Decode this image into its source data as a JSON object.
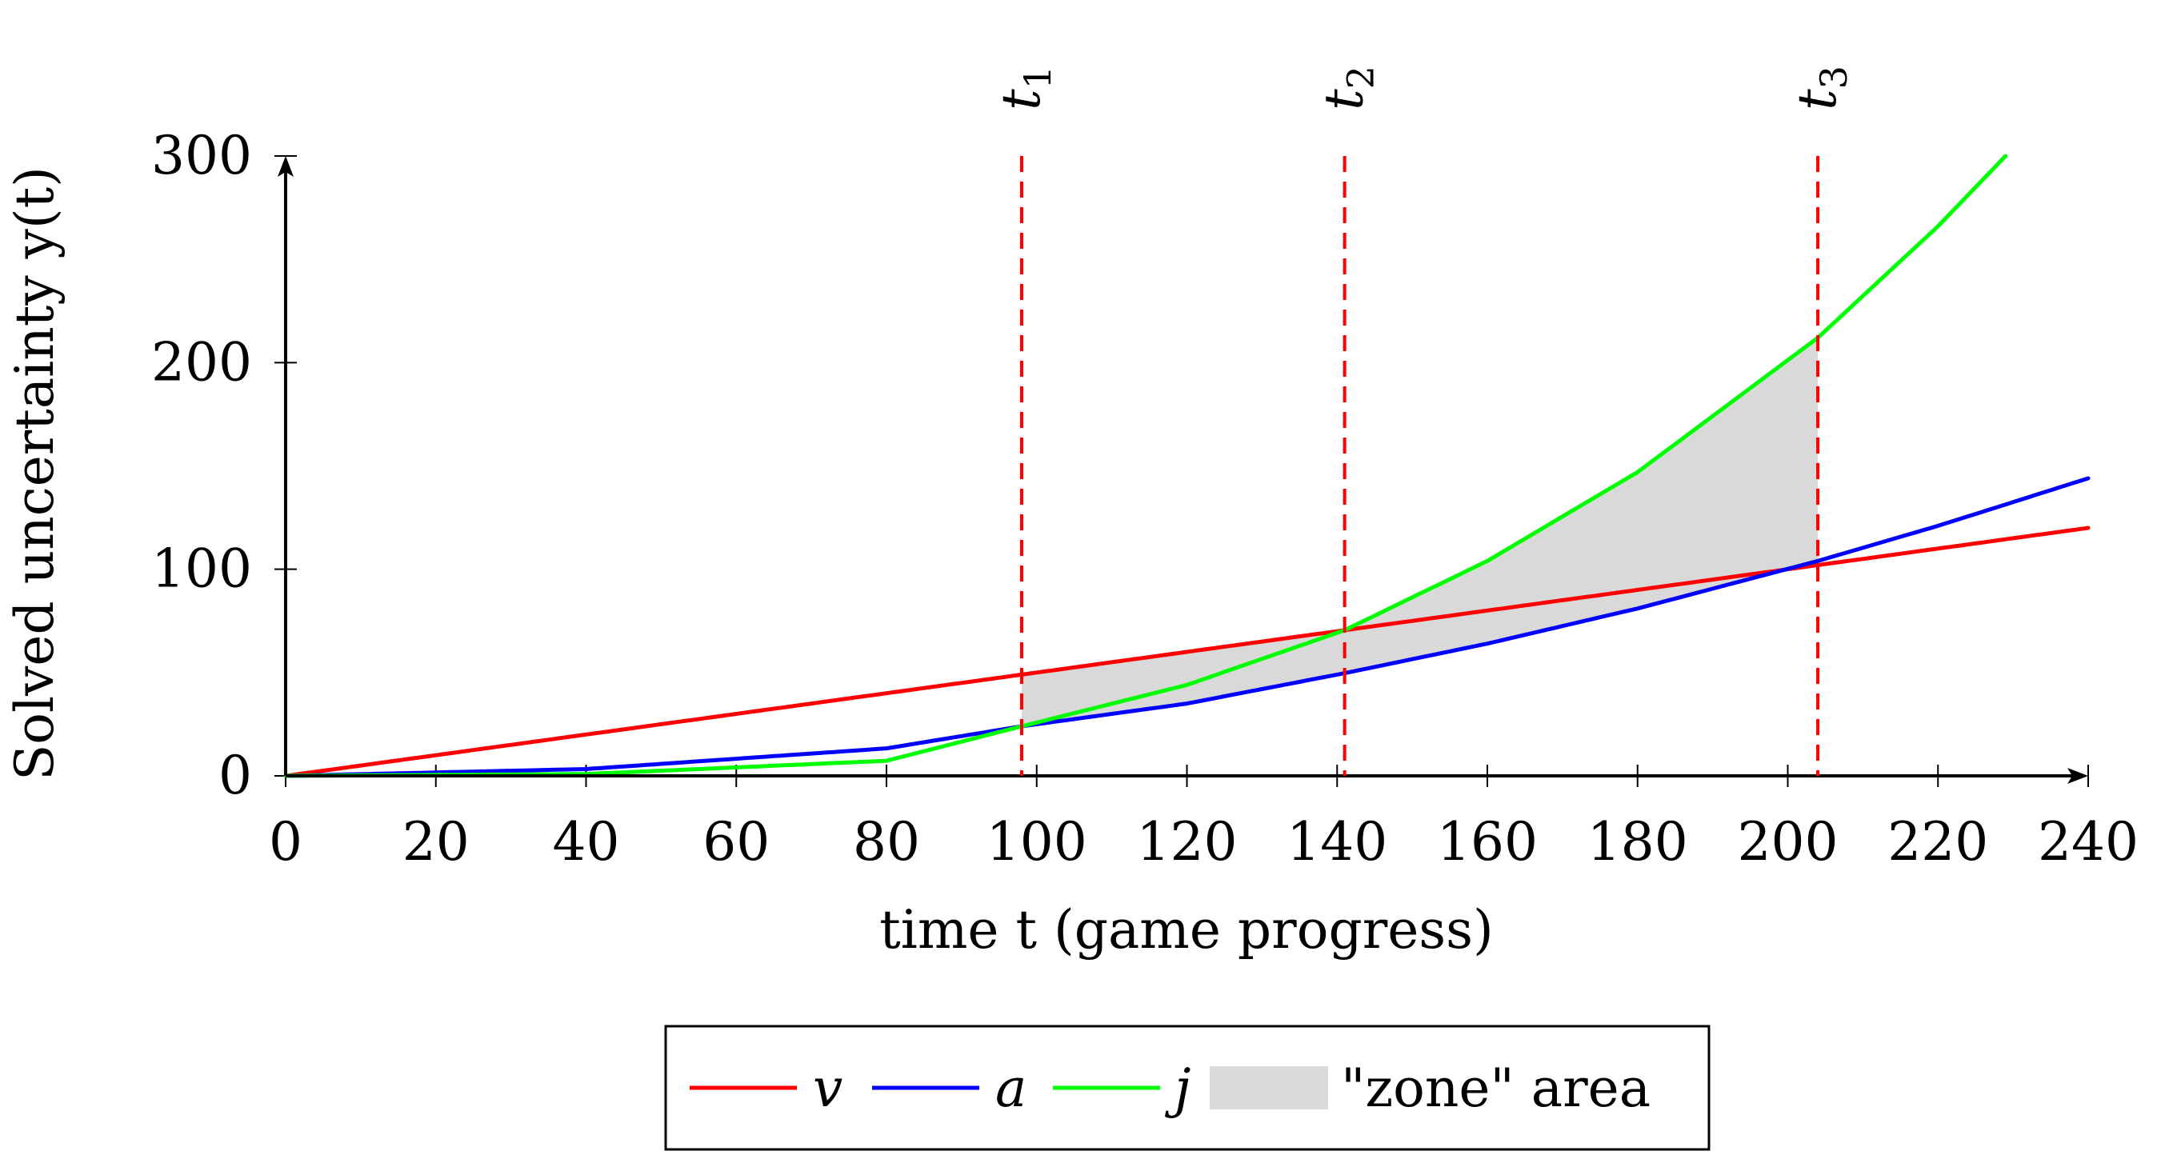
{
  "chart_data": {
    "type": "line",
    "xlabel": "time t (game progress)",
    "ylabel": "Solved uncertainty y(t)",
    "xlim": [
      0,
      240
    ],
    "ylim": [
      0,
      300
    ],
    "x_ticks": [
      0,
      20,
      40,
      60,
      80,
      100,
      120,
      140,
      160,
      180,
      200,
      220,
      240
    ],
    "y_ticks": [
      0,
      100,
      200,
      300
    ],
    "series": [
      {
        "name": "v",
        "color": "#ff0000",
        "x": [
          0,
          40,
          80,
          120,
          160,
          200,
          240
        ],
        "y": [
          0,
          20,
          40,
          60,
          80,
          100,
          120
        ]
      },
      {
        "name": "a",
        "color": "#0000ff",
        "x": [
          0,
          40,
          80,
          98,
          120,
          141,
          160,
          180,
          204,
          220,
          240
        ],
        "y": [
          0,
          3.3,
          13.3,
          24.0,
          35.0,
          49.7,
          64.0,
          81.0,
          104.0,
          121.0,
          144.0
        ]
      },
      {
        "name": "j",
        "color": "#00ff00",
        "x": [
          0,
          40,
          80,
          98,
          120,
          141,
          160,
          180,
          204,
          220,
          229
        ],
        "y": [
          0,
          0.9,
          7.3,
          24.0,
          44.0,
          70.5,
          104.0,
          147.0,
          212.0,
          266.0,
          300.0
        ]
      }
    ],
    "markers": [
      {
        "label": "t",
        "sub": "1",
        "x": 98
      },
      {
        "label": "t",
        "sub": "2",
        "x": 141
      },
      {
        "label": "t",
        "sub": "3",
        "x": 204
      }
    ],
    "marker_color": "#ff0000",
    "shaded_area": {
      "label": "\"zone\" area",
      "color": "#d9d9d9",
      "x_from": 98,
      "x_to": 204
    },
    "legend": {
      "position": "bottom-center",
      "entries": [
        "v",
        "a",
        "j",
        "\"zone\" area"
      ]
    }
  }
}
